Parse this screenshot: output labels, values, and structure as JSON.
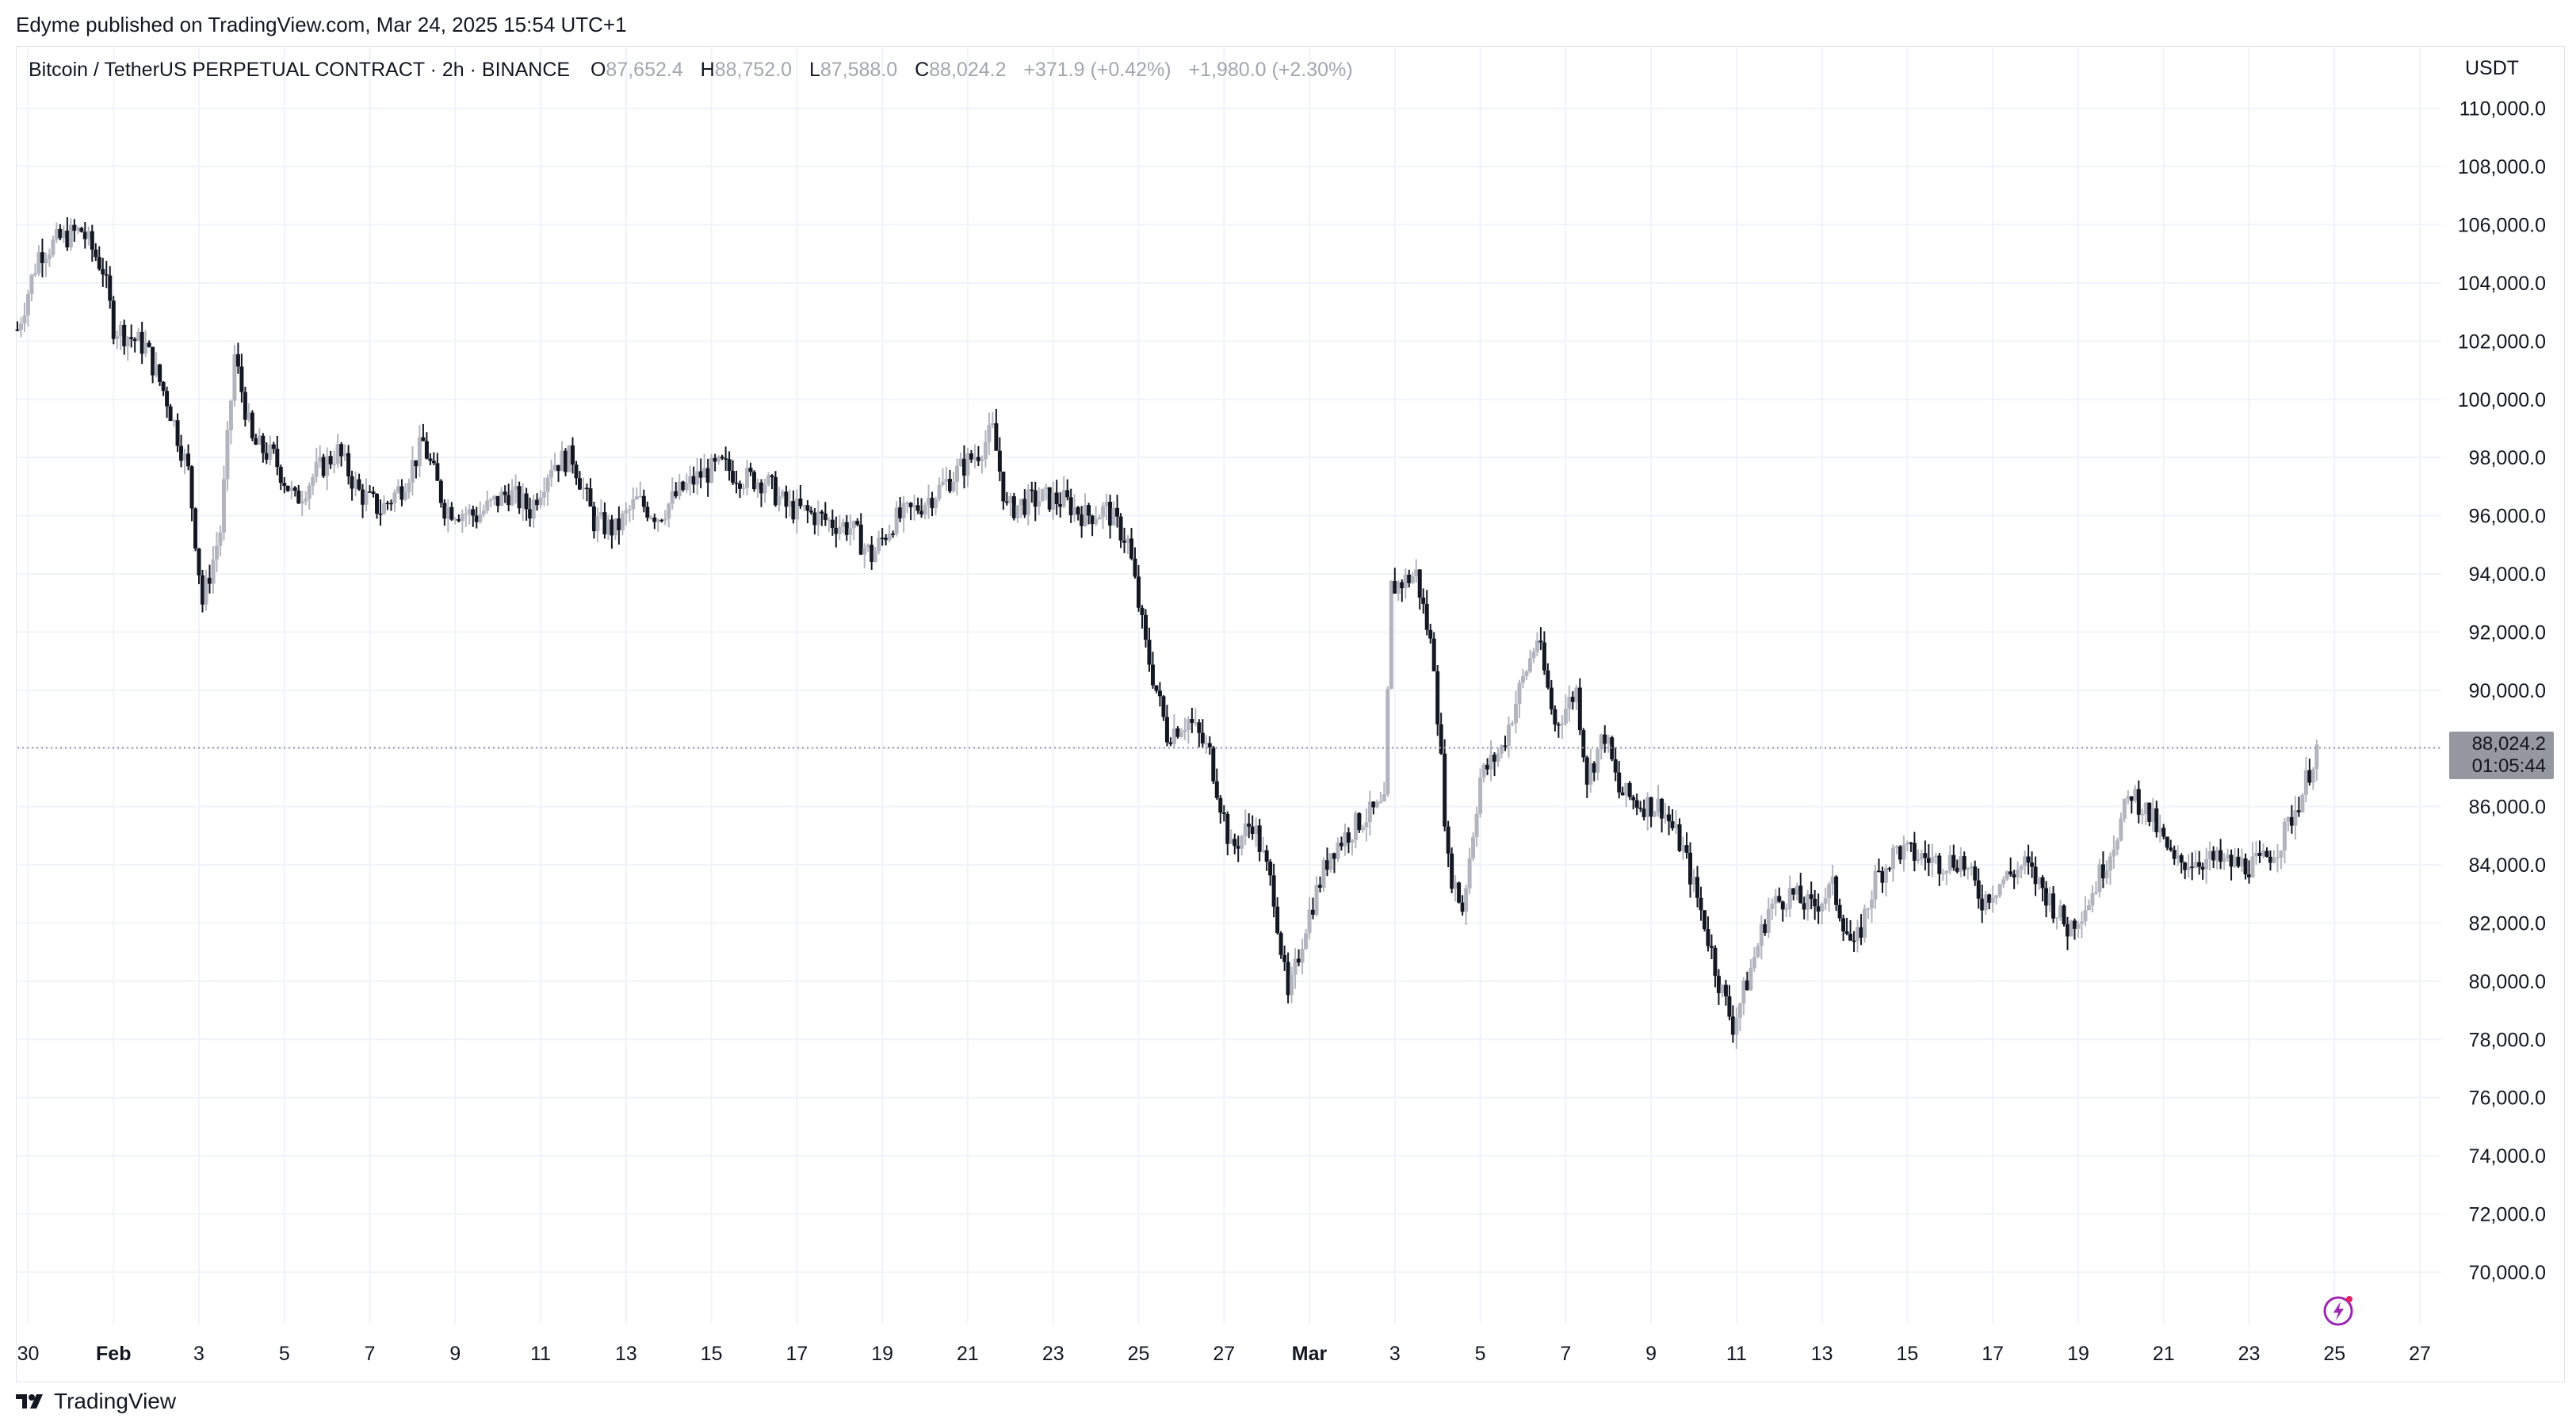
{
  "publish_line": "Edyme published on TradingView.com, Mar 24, 2025 15:54 UTC+1",
  "header": {
    "symbol": "Bitcoin / TetherUS PERPETUAL CONTRACT · 2h · BINANCE",
    "o_label": "O",
    "o_value": "87,652.4",
    "h_label": "H",
    "h_value": "88,752.0",
    "l_label": "L",
    "l_value": "87,588.0",
    "c_label": "C",
    "c_value": "88,024.2",
    "change": "+371.9 (+0.42%)",
    "change2": "+1,980.0 (+2.30%)"
  },
  "currency": "USDT",
  "last_price": {
    "price": "88,024.2",
    "countdown": "01:05:44",
    "value": 88024.2
  },
  "footer_brand": "TradingView",
  "icons": {
    "footer_logo": "tradingview-logo-icon",
    "bottom_right": "lightning-bolt-icon"
  },
  "colors": {
    "candle_up": "#b2b5be",
    "candle_down": "#131722",
    "grid": "#f0f3fa",
    "price_line": "#9598a1"
  },
  "chart_data": {
    "type": "candlestick",
    "title": "",
    "xlabel": "",
    "ylabel": "",
    "ylim": [
      68500,
      111000
    ],
    "y_ticks": [
      110000,
      108000,
      106000,
      104000,
      102000,
      100000,
      98000,
      96000,
      94000,
      92000,
      90000,
      88000,
      86000,
      84000,
      82000,
      80000,
      78000,
      76000,
      74000,
      72000,
      70000
    ],
    "y_tick_labels": [
      "110,000.0",
      "108,000.0",
      "106,000.0",
      "104,000.0",
      "102,000.0",
      "100,000.0",
      "98,000.0",
      "96,000.0",
      "94,000.0",
      "92,000.0",
      "90,000.0",
      "88,000.0",
      "86,000.0",
      "84,000.0",
      "82,000.0",
      "80,000.0",
      "78,000.0",
      "76,000.0",
      "74,000.0",
      "72,000.0",
      "70,000.0"
    ],
    "x_range": [
      "2025-01-29T18:00",
      "2025-03-27T12:00"
    ],
    "x_ticks": [
      {
        "date": "2025-01-30",
        "label": "30"
      },
      {
        "date": "2025-02-01",
        "label": "Feb"
      },
      {
        "date": "2025-02-03",
        "label": "3"
      },
      {
        "date": "2025-02-05",
        "label": "5"
      },
      {
        "date": "2025-02-07",
        "label": "7"
      },
      {
        "date": "2025-02-09",
        "label": "9"
      },
      {
        "date": "2025-02-11",
        "label": "11"
      },
      {
        "date": "2025-02-13",
        "label": "13"
      },
      {
        "date": "2025-02-15",
        "label": "15"
      },
      {
        "date": "2025-02-17",
        "label": "17"
      },
      {
        "date": "2025-02-19",
        "label": "19"
      },
      {
        "date": "2025-02-21",
        "label": "21"
      },
      {
        "date": "2025-02-23",
        "label": "23"
      },
      {
        "date": "2025-02-25",
        "label": "25"
      },
      {
        "date": "2025-02-27",
        "label": "27"
      },
      {
        "date": "2025-03-01",
        "label": "Mar"
      },
      {
        "date": "2025-03-03",
        "label": "3"
      },
      {
        "date": "2025-03-05",
        "label": "5"
      },
      {
        "date": "2025-03-07",
        "label": "7"
      },
      {
        "date": "2025-03-09",
        "label": "9"
      },
      {
        "date": "2025-03-11",
        "label": "11"
      },
      {
        "date": "2025-03-13",
        "label": "13"
      },
      {
        "date": "2025-03-15",
        "label": "15"
      },
      {
        "date": "2025-03-17",
        "label": "17"
      },
      {
        "date": "2025-03-19",
        "label": "19"
      },
      {
        "date": "2025-03-21",
        "label": "21"
      },
      {
        "date": "2025-03-23",
        "label": "23"
      },
      {
        "date": "2025-03-25",
        "label": "25"
      },
      {
        "date": "2025-03-27",
        "label": "27"
      }
    ],
    "price_points": [
      [
        "2025-01-29T18:00",
        102400
      ],
      [
        "2025-01-30T06:00",
        105000
      ],
      [
        "2025-01-30T18:00",
        105500
      ],
      [
        "2025-01-31T06:00",
        105800
      ],
      [
        "2025-01-31T18:00",
        104500
      ],
      [
        "2025-02-01T00:00",
        102500
      ],
      [
        "2025-02-01T18:00",
        101800
      ],
      [
        "2025-02-02T06:00",
        100000
      ],
      [
        "2025-02-02T18:00",
        97500
      ],
      [
        "2025-02-03T02:00",
        93000
      ],
      [
        "2025-02-03T12:00",
        95500
      ],
      [
        "2025-02-03T20:00",
        101500
      ],
      [
        "2025-02-04T06:00",
        98500
      ],
      [
        "2025-02-04T18:00",
        98000
      ],
      [
        "2025-02-05T06:00",
        96500
      ],
      [
        "2025-02-05T18:00",
        97500
      ],
      [
        "2025-02-06T06:00",
        98200
      ],
      [
        "2025-02-06T18:00",
        96800
      ],
      [
        "2025-02-07T06:00",
        96200
      ],
      [
        "2025-02-07T18:00",
        97000
      ],
      [
        "2025-02-08T06:00",
        98500
      ],
      [
        "2025-02-08T18:00",
        96300
      ],
      [
        "2025-02-09T12:00",
        96000
      ],
      [
        "2025-02-10T06:00",
        96800
      ],
      [
        "2025-02-10T18:00",
        96200
      ],
      [
        "2025-02-11T06:00",
        97800
      ],
      [
        "2025-02-11T18:00",
        98000
      ],
      [
        "2025-02-12T06:00",
        95800
      ],
      [
        "2025-02-12T18:00",
        95500
      ],
      [
        "2025-02-13T06:00",
        96500
      ],
      [
        "2025-02-13T18:00",
        96000
      ],
      [
        "2025-02-14T06:00",
        96800
      ],
      [
        "2025-02-14T18:00",
        97400
      ],
      [
        "2025-02-15T06:00",
        97700
      ],
      [
        "2025-02-15T18:00",
        97300
      ],
      [
        "2025-02-16T06:00",
        97200
      ],
      [
        "2025-02-16T18:00",
        96300
      ],
      [
        "2025-02-17T06:00",
        96100
      ],
      [
        "2025-02-17T18:00",
        95800
      ],
      [
        "2025-02-18T06:00",
        95600
      ],
      [
        "2025-02-18T18:00",
        94600
      ],
      [
        "2025-02-19T06:00",
        95800
      ],
      [
        "2025-02-19T18:00",
        96200
      ],
      [
        "2025-02-20T06:00",
        96800
      ],
      [
        "2025-02-20T18:00",
        97500
      ],
      [
        "2025-02-21T06:00",
        98200
      ],
      [
        "2025-02-21T14:00",
        98900
      ],
      [
        "2025-02-21T22:00",
        96200
      ],
      [
        "2025-02-22T06:00",
        96400
      ],
      [
        "2025-02-22T18:00",
        96600
      ],
      [
        "2025-02-23T06:00",
        96500
      ],
      [
        "2025-02-23T18:00",
        96000
      ],
      [
        "2025-02-24T06:00",
        96200
      ],
      [
        "2025-02-24T18:00",
        95100
      ],
      [
        "2025-02-25T04:00",
        91500
      ],
      [
        "2025-02-25T16:00",
        88500
      ],
      [
        "2025-02-26T04:00",
        89000
      ],
      [
        "2025-02-26T16:00",
        87800
      ],
      [
        "2025-02-27T04:00",
        84500
      ],
      [
        "2025-02-27T16:00",
        85500
      ],
      [
        "2025-02-28T04:00",
        83000
      ],
      [
        "2025-02-28T12:00",
        79300
      ],
      [
        "2025-02-28T22:00",
        82000
      ],
      [
        "2025-03-01T12:00",
        84500
      ],
      [
        "2025-03-02T06:00",
        85600
      ],
      [
        "2025-03-02T18:00",
        86000
      ],
      [
        "2025-03-02T22:00",
        93500
      ],
      [
        "2025-03-03T12:00",
        94000
      ],
      [
        "2025-03-03T22:00",
        91000
      ],
      [
        "2025-03-04T06:00",
        84000
      ],
      [
        "2025-03-04T14:00",
        82500
      ],
      [
        "2025-03-05T00:00",
        87000
      ],
      [
        "2025-03-05T12:00",
        88000
      ],
      [
        "2025-03-05T22:00",
        90000
      ],
      [
        "2025-03-06T08:00",
        91800
      ],
      [
        "2025-03-06T18:00",
        88800
      ],
      [
        "2025-03-07T06:00",
        90000
      ],
      [
        "2025-03-07T12:00",
        87000
      ],
      [
        "2025-03-07T22:00",
        88500
      ],
      [
        "2025-03-08T06:00",
        86500
      ],
      [
        "2025-03-08T18:00",
        86100
      ],
      [
        "2025-03-09T06:00",
        86000
      ],
      [
        "2025-03-09T18:00",
        84500
      ],
      [
        "2025-03-10T06:00",
        82000
      ],
      [
        "2025-03-10T14:00",
        80000
      ],
      [
        "2025-03-10T22:00",
        78500
      ],
      [
        "2025-03-11T06:00",
        80000
      ],
      [
        "2025-03-11T18:00",
        82500
      ],
      [
        "2025-03-12T06:00",
        83000
      ],
      [
        "2025-03-12T18:00",
        82500
      ],
      [
        "2025-03-13T06:00",
        83200
      ],
      [
        "2025-03-13T18:00",
        81000
      ],
      [
        "2025-03-14T06:00",
        83500
      ],
      [
        "2025-03-14T18:00",
        84500
      ],
      [
        "2025-03-15T06:00",
        84300
      ],
      [
        "2025-03-15T18:00",
        84100
      ],
      [
        "2025-03-16T06:00",
        84200
      ],
      [
        "2025-03-16T18:00",
        82800
      ],
      [
        "2025-03-17T06:00",
        83500
      ],
      [
        "2025-03-17T18:00",
        84000
      ],
      [
        "2025-03-18T06:00",
        83000
      ],
      [
        "2025-03-18T18:00",
        81800
      ],
      [
        "2025-03-19T06:00",
        82800
      ],
      [
        "2025-03-19T18:00",
        84500
      ],
      [
        "2025-03-20T06:00",
        86500
      ],
      [
        "2025-03-20T18:00",
        85500
      ],
      [
        "2025-03-21T06:00",
        84000
      ],
      [
        "2025-03-21T18:00",
        84200
      ],
      [
        "2025-03-22T06:00",
        84100
      ],
      [
        "2025-03-22T18:00",
        84000
      ],
      [
        "2025-03-23T06:00",
        84000
      ],
      [
        "2025-03-23T18:00",
        84800
      ],
      [
        "2025-03-24T06:00",
        86500
      ],
      [
        "2025-03-24T14:00",
        88024
      ]
    ]
  }
}
